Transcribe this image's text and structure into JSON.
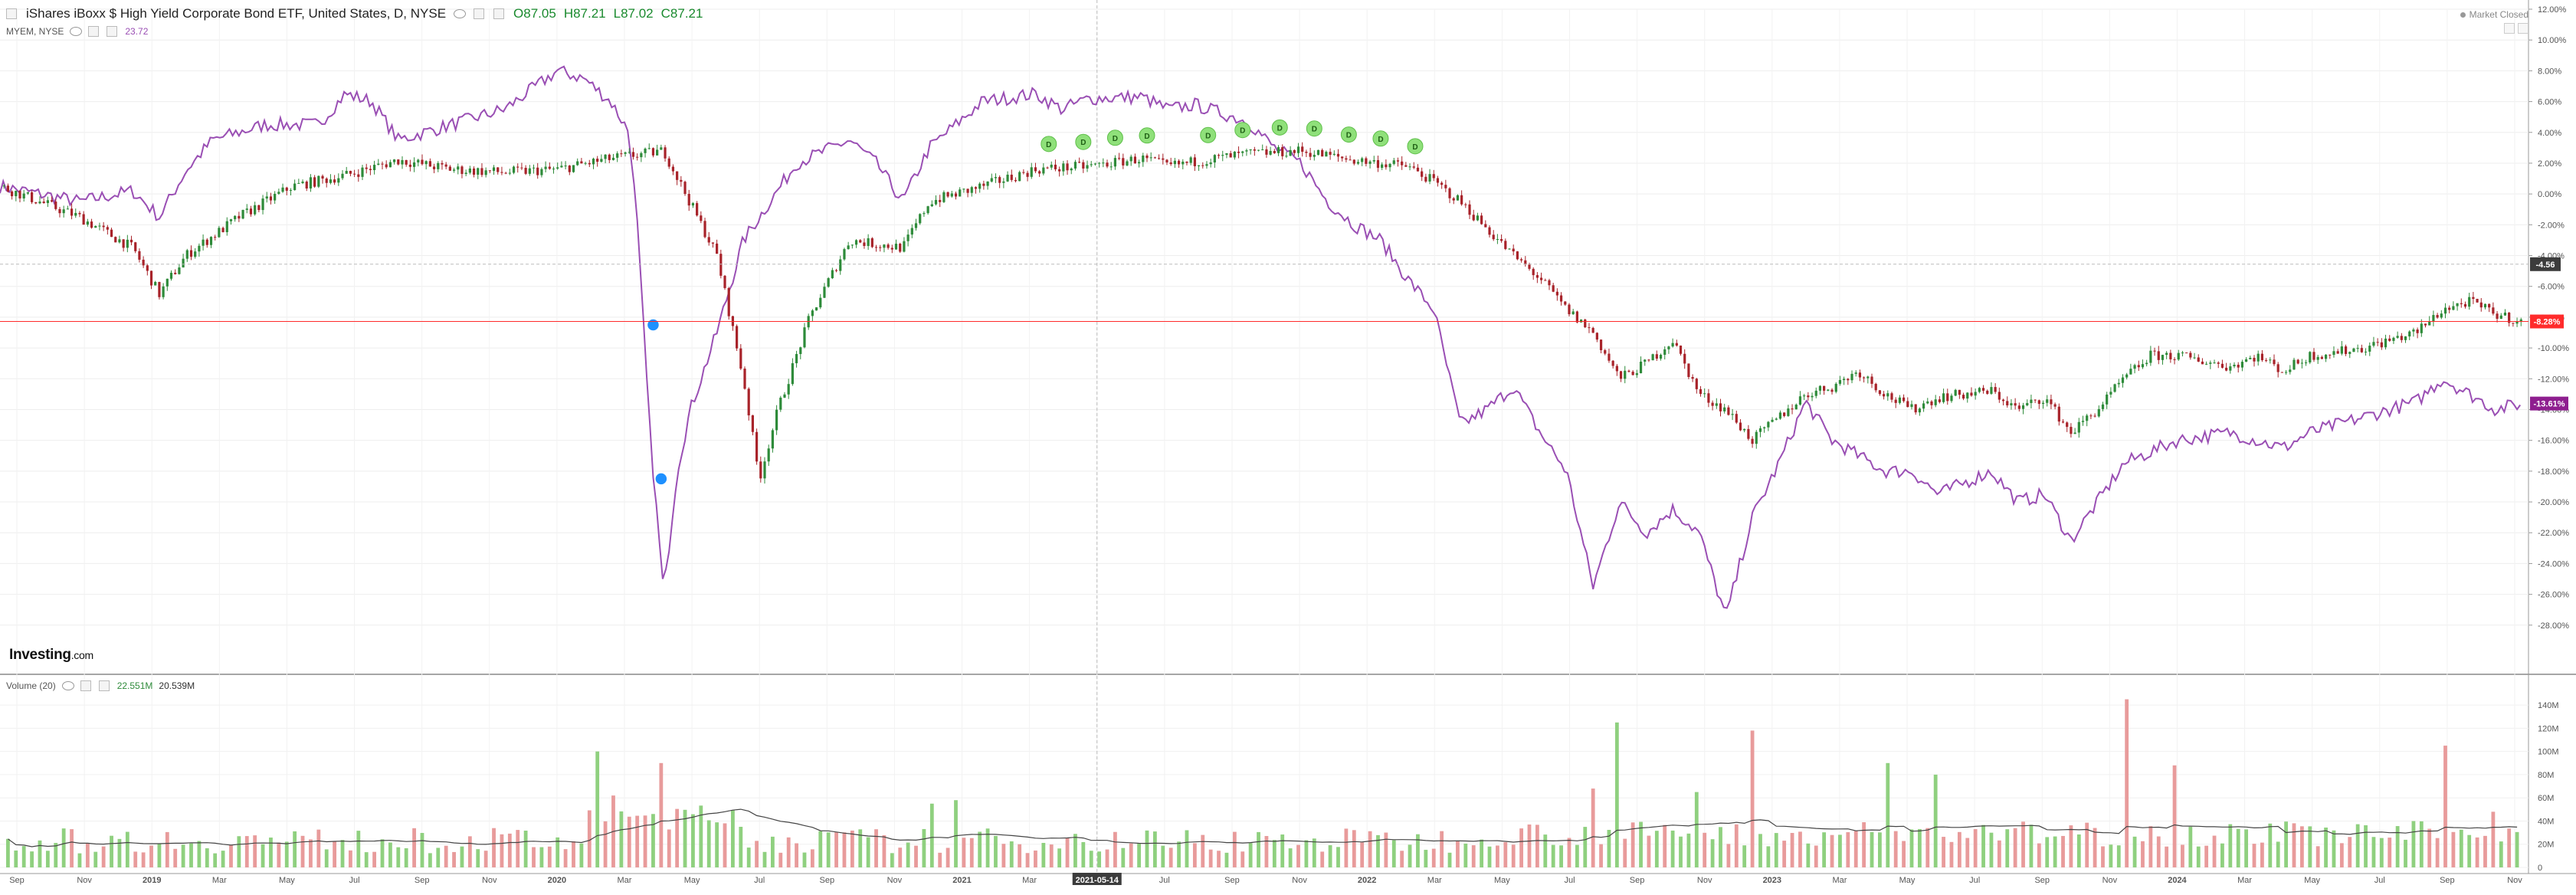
{
  "header": {
    "title": "iShares iBoxx $ High Yield Corporate Bond ETF, United States, D, NYSE",
    "ohlc": {
      "o": "O87.05",
      "h": "H87.21",
      "l": "L87.02",
      "c": "C87.21"
    },
    "compare_symbol": "MYEM, NYSE",
    "compare_value": "23.72",
    "market_status": "Market Closed"
  },
  "volume_header": {
    "label": "Volume (20)",
    "value": "22.551M",
    "ma_value": "20.539M"
  },
  "logo": {
    "main": "Investing",
    "suffix": ".com"
  },
  "colors": {
    "up": "#2e8b3a",
    "down": "#a8232a",
    "compare": "#9a4fb4",
    "vol_up": "#8fd07f",
    "vol_down": "#e89b9b",
    "last_marker": "#ff2b2b",
    "compare_marker": "#8e1f8f",
    "crosshair_marker": "#3c3c3c",
    "dividend": "#8fe07a",
    "split": "#1e90ff"
  },
  "chart_data": {
    "type": "line",
    "title": "iShares iBoxx $ High Yield Corporate Bond ETF, United States, D, NYSE",
    "ylabel": "",
    "xlabel": "",
    "x_ticks": [
      "Sep",
      "Nov",
      "2019",
      "Mar",
      "May",
      "Jul",
      "Sep",
      "Nov",
      "2020",
      "Mar",
      "May",
      "Jul",
      "Sep",
      "Nov",
      "2021",
      "Mar",
      "2021-05-14",
      "Jul",
      "Sep",
      "Nov",
      "2022",
      "Mar",
      "May",
      "Jul",
      "Sep",
      "Nov",
      "2023",
      "Mar",
      "May",
      "Jul",
      "Sep",
      "Nov",
      "2024",
      "Mar",
      "May",
      "Jul",
      "Sep",
      "Nov"
    ],
    "y_ticks": [
      "12.00%",
      "10.00%",
      "8.00%",
      "6.00%",
      "4.00%",
      "2.00%",
      "0.00%",
      "-2.00%",
      "-4.00%",
      "-6.00%",
      "-8.00%",
      "-10.00%",
      "-12.00%",
      "-14.00%",
      "-16.00%",
      "-18.00%",
      "-20.00%",
      "-22.00%",
      "-24.00%",
      "-26.00%",
      "-28.00%"
    ],
    "ylim": [
      -30,
      12
    ],
    "grid": true,
    "markers": {
      "last": "-8.28%",
      "compare": "-13.61%",
      "crosshair": "-4.56"
    },
    "crosshair_x": "2021-05-14",
    "series": [
      {
        "name": "iShares iBoxx $ High Yield Corporate Bond ETF",
        "style": "candles",
        "points": [
          [
            0,
            0.5
          ],
          [
            3,
            -1.5
          ],
          [
            5,
            -3.5
          ],
          [
            6,
            -6.5
          ],
          [
            7,
            -4
          ],
          [
            9,
            -1.5
          ],
          [
            11,
            0.5
          ],
          [
            13,
            1.2
          ],
          [
            15,
            2.2
          ],
          [
            17,
            1.6
          ],
          [
            19,
            1.4
          ],
          [
            21,
            1.6
          ],
          [
            23,
            2.3
          ],
          [
            25,
            2.8
          ],
          [
            27,
            -4
          ],
          [
            28,
            -12
          ],
          [
            28.6,
            -18.5
          ],
          [
            29.3,
            -14
          ],
          [
            30.5,
            -8
          ],
          [
            32,
            -3
          ],
          [
            34,
            -3.5
          ],
          [
            35,
            -0.5
          ],
          [
            37,
            0.5
          ],
          [
            39,
            1.6
          ],
          [
            41,
            1.8
          ],
          [
            43,
            2.3
          ],
          [
            44,
            1.8
          ],
          [
            45,
            2.1
          ],
          [
            47,
            2.6
          ],
          [
            49,
            2.8
          ],
          [
            51,
            2.2
          ],
          [
            53,
            1.8
          ],
          [
            54,
            0.8
          ],
          [
            55,
            -0.5
          ],
          [
            57,
            -4
          ],
          [
            58,
            -5.5
          ],
          [
            59,
            -7.5
          ],
          [
            60,
            -9
          ],
          [
            61,
            -12
          ],
          [
            62,
            -11
          ],
          [
            63,
            -9.5
          ],
          [
            64,
            -13
          ],
          [
            65,
            -14
          ],
          [
            66,
            -16
          ],
          [
            67,
            -14.5
          ],
          [
            68,
            -13
          ],
          [
            69,
            -12.5
          ],
          [
            70,
            -11.5
          ],
          [
            71,
            -13
          ],
          [
            72,
            -14
          ],
          [
            73,
            -13.2
          ],
          [
            75,
            -12.8
          ],
          [
            76,
            -14
          ],
          [
            77,
            -13.2
          ],
          [
            78,
            -15.5
          ],
          [
            79,
            -14
          ],
          [
            80,
            -12
          ],
          [
            81,
            -10.5
          ],
          [
            82,
            -10.5
          ],
          [
            84,
            -11.2
          ],
          [
            85,
            -10.5
          ],
          [
            86,
            -11.5
          ],
          [
            87,
            -10.5
          ],
          [
            89,
            -10
          ],
          [
            91,
            -9
          ],
          [
            92,
            -7.5
          ],
          [
            93,
            -7
          ],
          [
            94,
            -7.8
          ],
          [
            95,
            -8.3
          ]
        ]
      },
      {
        "name": "MYEM",
        "style": "line",
        "points": [
          [
            0,
            0.5
          ],
          [
            3,
            -0.5
          ],
          [
            5,
            0.2
          ],
          [
            6,
            -1.5
          ],
          [
            7,
            1.5
          ],
          [
            8,
            3.5
          ],
          [
            10,
            4.5
          ],
          [
            12,
            4.5
          ],
          [
            13,
            6.5
          ],
          [
            14,
            6
          ],
          [
            15,
            3.5
          ],
          [
            17,
            4.5
          ],
          [
            19,
            5.5
          ],
          [
            21,
            8
          ],
          [
            22,
            7.5
          ],
          [
            23,
            6
          ],
          [
            23.7,
            4
          ],
          [
            24,
            -2
          ],
          [
            24.5,
            -16
          ],
          [
            25,
            -26
          ],
          [
            25.5,
            -18
          ],
          [
            26,
            -14
          ],
          [
            27,
            -9
          ],
          [
            28,
            -3
          ],
          [
            30,
            2
          ],
          [
            32,
            3.5
          ],
          [
            33,
            2
          ],
          [
            34,
            -0.5
          ],
          [
            35,
            3
          ],
          [
            37,
            6
          ],
          [
            39,
            6.5
          ],
          [
            40,
            5.5
          ],
          [
            41,
            6.2
          ],
          [
            43,
            6.3
          ],
          [
            44,
            5.5
          ],
          [
            45,
            5.8
          ],
          [
            47,
            4.7
          ],
          [
            48,
            3
          ],
          [
            49,
            2
          ],
          [
            50,
            -0.5
          ],
          [
            51,
            -2
          ],
          [
            52,
            -3
          ],
          [
            53,
            -5.5
          ],
          [
            54,
            -7.5
          ],
          [
            55,
            -15
          ],
          [
            56,
            -14
          ],
          [
            57,
            -12.5
          ],
          [
            58,
            -15.5
          ],
          [
            59,
            -18
          ],
          [
            60,
            -25.5
          ],
          [
            61,
            -20
          ],
          [
            62,
            -22
          ],
          [
            63,
            -20.5
          ],
          [
            64,
            -22
          ],
          [
            65,
            -27.5
          ],
          [
            66,
            -21
          ],
          [
            67,
            -17.5
          ],
          [
            68,
            -13.5
          ],
          [
            69,
            -16
          ],
          [
            70,
            -17
          ],
          [
            71,
            -18
          ],
          [
            72,
            -18
          ],
          [
            73,
            -19.5
          ],
          [
            75,
            -18
          ],
          [
            76,
            -20
          ],
          [
            77,
            -19.5
          ],
          [
            78,
            -22.5
          ],
          [
            79,
            -20
          ],
          [
            80,
            -17.5
          ],
          [
            82,
            -16
          ],
          [
            84,
            -15.5
          ],
          [
            86,
            -16.5
          ],
          [
            87,
            -15.5
          ],
          [
            89,
            -14.5
          ],
          [
            91,
            -13.5
          ],
          [
            92,
            -12
          ],
          [
            93,
            -13
          ],
          [
            94,
            -14
          ],
          [
            95,
            -13.6
          ]
        ]
      }
    ],
    "dividend_markers_label": "D",
    "volume": {
      "y_ticks": [
        "140M",
        "120M",
        "100M",
        "80M",
        "60M",
        "40M",
        "20M",
        "0"
      ],
      "ylim": [
        0,
        150
      ],
      "ma_period": 20,
      "spikes": [
        [
          22.5,
          100
        ],
        [
          23,
          62
        ],
        [
          25,
          90
        ],
        [
          35,
          55
        ],
        [
          36,
          58
        ],
        [
          60,
          68
        ],
        [
          61,
          125
        ],
        [
          64,
          65
        ],
        [
          66,
          118
        ],
        [
          71,
          90
        ],
        [
          73,
          80
        ],
        [
          80,
          145
        ],
        [
          82,
          88
        ],
        [
          92,
          105
        ],
        [
          94,
          48
        ],
        [
          95,
          48
        ]
      ]
    }
  }
}
